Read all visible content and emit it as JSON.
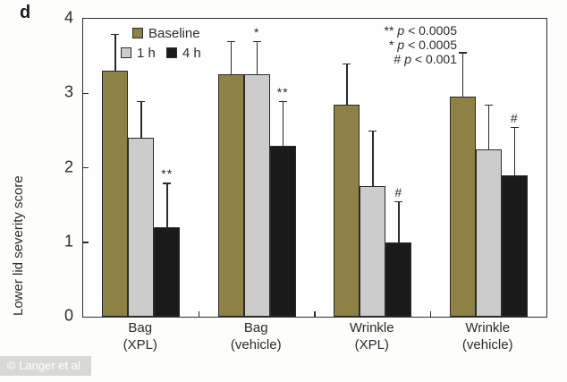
{
  "panel": {
    "letter": "d"
  },
  "watermark": {
    "text": "© Langer et al"
  },
  "colors": {
    "axis": "#2b2b2b",
    "baseline_bar": "#8d8146",
    "one_hour_bar": "#cccccc",
    "four_hour_bar": "#1a1a1a"
  },
  "chart_data": {
    "type": "bar",
    "title": "",
    "xlabel": "",
    "ylabel": "Lower lid severity score",
    "ylim": [
      0,
      4
    ],
    "yticks": [
      0,
      1,
      2,
      3,
      4
    ],
    "grid": false,
    "legend_position": "top-left-inside",
    "categories": [
      {
        "line1": "Bag",
        "line2": "(XPL)"
      },
      {
        "line1": "Bag",
        "line2": "(vehicle)"
      },
      {
        "line1": "Wrinkle",
        "line2": "(XPL)"
      },
      {
        "line1": "Wrinkle",
        "line2": "(vehicle)"
      }
    ],
    "series": [
      {
        "name": "Baseline",
        "color": "#8d8146",
        "values": [
          3.3,
          3.25,
          2.85,
          2.95
        ],
        "errors_upper": [
          0.5,
          0.45,
          0.55,
          0.6
        ],
        "sig": [
          "",
          "",
          "",
          ""
        ]
      },
      {
        "name": "1 h",
        "color": "#cccccc",
        "values": [
          2.4,
          3.25,
          1.75,
          2.25
        ],
        "errors_upper": [
          0.5,
          0.45,
          0.75,
          0.6
        ],
        "sig": [
          "",
          "*",
          "",
          ""
        ]
      },
      {
        "name": "4 h",
        "color": "#1a1a1a",
        "values": [
          1.2,
          2.3,
          1.0,
          1.9
        ],
        "errors_upper": [
          0.6,
          0.6,
          0.55,
          0.65
        ],
        "sig": [
          "**",
          "**",
          "#",
          "#"
        ]
      }
    ],
    "annotations": [
      {
        "marker": "**",
        "p": "p",
        "rest": "< 0.0005"
      },
      {
        "marker": "*",
        "p": "p",
        "rest": "< 0.0005"
      },
      {
        "marker": "#",
        "p": "p",
        "rest": "< 0.001"
      }
    ]
  }
}
